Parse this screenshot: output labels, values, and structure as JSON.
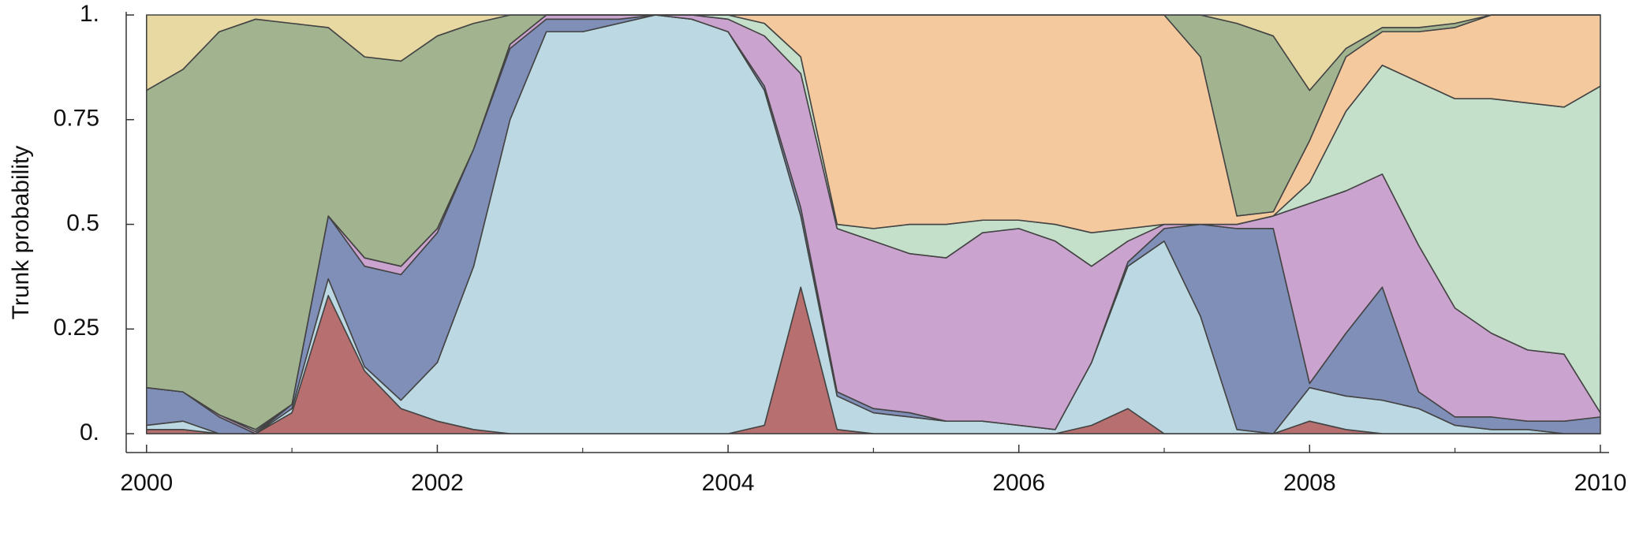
{
  "chart_data": {
    "type": "stacked-area",
    "y_label": "Trunk probability",
    "x": [
      2000,
      2000.25,
      2000.5,
      2000.75,
      2001,
      2001.25,
      2001.5,
      2001.75,
      2002,
      2002.25,
      2002.5,
      2002.75,
      2003,
      2003.25,
      2003.5,
      2003.75,
      2004,
      2004.25,
      2004.5,
      2004.75,
      2005,
      2005.25,
      2005.5,
      2005.75,
      2006,
      2006.25,
      2006.5,
      2006.75,
      2007,
      2007.25,
      2007.5,
      2007.75,
      2008,
      2008.25,
      2008.5,
      2008.75,
      2009,
      2009.25,
      2009.5,
      2009.75,
      2010
    ],
    "series": [
      {
        "color": "#b86f6f",
        "values": [
          0.01,
          0.01,
          0,
          0,
          0.05,
          0.33,
          0.15,
          0.06,
          0.03,
          0.01,
          0,
          0,
          0,
          0,
          0,
          0,
          0,
          0.02,
          0.35,
          0.01,
          0,
          0,
          0,
          0,
          0,
          0,
          0.02,
          0.06,
          0,
          0,
          0,
          0,
          0.03,
          0.01,
          0,
          0,
          0,
          0,
          0,
          0,
          0
        ]
      },
      {
        "color": "#bcd9e3",
        "values": [
          0.01,
          0.02,
          0,
          0,
          0.01,
          0.04,
          0.01,
          0.02,
          0.14,
          0.39,
          0.75,
          0.96,
          0.96,
          0.98,
          1,
          0.99,
          0.96,
          0.8,
          0.17,
          0.08,
          0.05,
          0.04,
          0.03,
          0.03,
          0.02,
          0.01,
          0.15,
          0.34,
          0.46,
          0.28,
          0.01,
          0,
          0.08,
          0.08,
          0.08,
          0.06,
          0.02,
          0.01,
          0.01,
          0,
          0
        ]
      },
      {
        "color": "#7f8fb8",
        "values": [
          0.09,
          0.07,
          0.04,
          0,
          0.01,
          0.15,
          0.24,
          0.3,
          0.31,
          0.28,
          0.17,
          0.03,
          0.03,
          0.01,
          0,
          0,
          0,
          0.01,
          0.02,
          0.01,
          0.01,
          0.01,
          0,
          0,
          0,
          0,
          0,
          0.01,
          0.03,
          0.22,
          0.48,
          0.49,
          0.01,
          0.15,
          0.27,
          0.04,
          0.02,
          0.03,
          0.02,
          0.03,
          0.04
        ]
      },
      {
        "color": "#cba3cf",
        "values": [
          0,
          0,
          0.005,
          0.005,
          0,
          0,
          0.02,
          0.02,
          0.01,
          0,
          0.01,
          0.01,
          0.01,
          0.01,
          0,
          0.01,
          0.03,
          0.12,
          0.32,
          0.39,
          0.4,
          0.38,
          0.39,
          0.45,
          0.47,
          0.45,
          0.23,
          0.05,
          0.01,
          0,
          0.01,
          0.03,
          0.43,
          0.34,
          0.27,
          0.35,
          0.26,
          0.2,
          0.17,
          0.16,
          0.01
        ]
      },
      {
        "color": "#c5e0ca",
        "values": [
          0,
          0,
          0,
          0.005,
          0,
          0,
          0,
          0,
          0,
          0,
          0,
          0,
          0,
          0,
          0,
          0,
          0.01,
          0.03,
          0.04,
          0.01,
          0.03,
          0.07,
          0.08,
          0.03,
          0.02,
          0.04,
          0.08,
          0.03,
          0,
          0,
          0,
          0,
          0.05,
          0.19,
          0.26,
          0.39,
          0.5,
          0.56,
          0.59,
          0.59,
          0.78
        ]
      },
      {
        "color": "#f4c99e",
        "values": [
          0,
          0,
          0,
          0,
          0,
          0,
          0,
          0,
          0,
          0,
          0,
          0,
          0,
          0,
          0,
          0,
          0,
          0.02,
          0.1,
          0.5,
          0.51,
          0.5,
          0.5,
          0.49,
          0.49,
          0.5,
          0.52,
          0.51,
          0.5,
          0.4,
          0.02,
          0.01,
          0.1,
          0.13,
          0.08,
          0.12,
          0.17,
          0.2,
          0.21,
          0.22,
          0.17
        ]
      },
      {
        "color": "#a1b48f",
        "values": [
          0.71,
          0.77,
          0.915,
          0.98,
          0.91,
          0.45,
          0.48,
          0.49,
          0.46,
          0.3,
          0.07,
          0,
          0,
          0,
          0,
          0,
          0,
          0,
          0,
          0,
          0,
          0,
          0,
          0,
          0,
          0,
          0,
          0,
          0,
          0.1,
          0.46,
          0.42,
          0.12,
          0.02,
          0.01,
          0.01,
          0.01,
          0,
          0,
          0,
          0
        ]
      },
      {
        "color": "#e8d9a3",
        "values": [
          0.18,
          0.13,
          0.04,
          0.01,
          0.02,
          0.03,
          0.1,
          0.11,
          0.05,
          0.02,
          0,
          0,
          0,
          0,
          0,
          0,
          0,
          0,
          0,
          0,
          0,
          0,
          0,
          0,
          0,
          0,
          0,
          0,
          0,
          0,
          0.02,
          0.05,
          0.18,
          0.08,
          0.03,
          0.03,
          0.02,
          0,
          0,
          0,
          0
        ]
      }
    ],
    "xlim": [
      1999.86,
      2010.06
    ],
    "ylim": [
      -0.045,
      1
    ],
    "xticks": [
      2000,
      2002,
      2004,
      2006,
      2008,
      2010
    ],
    "xminorticks": [
      2001,
      2003,
      2005,
      2007,
      2009
    ],
    "yticks": [
      {
        "value": 0,
        "label": "0."
      },
      0.25,
      0.5,
      0.75,
      {
        "value": 1,
        "label": "1."
      }
    ],
    "line_color": "#444444"
  }
}
